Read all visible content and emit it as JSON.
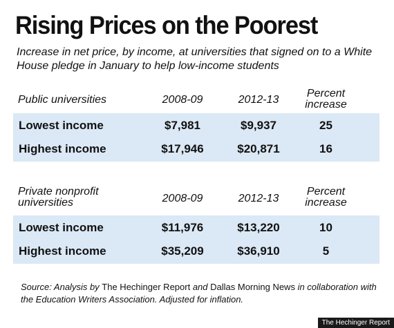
{
  "title": "Rising Prices on the Poorest",
  "subtitle": "Increase in net price, by income, at universities that signed on to a White House pledge in January to help low-income students",
  "public": {
    "heading": "Public universities",
    "col_a": "2008-09",
    "col_b": "2012-13",
    "col_c_1": "Percent",
    "col_c_2": "increase",
    "rows": [
      {
        "label": "Lowest income",
        "a": "$7,981",
        "b": "$9,937",
        "c": "25"
      },
      {
        "label": "Highest income",
        "a": "$17,946",
        "b": "$20,871",
        "c": "16"
      }
    ]
  },
  "private": {
    "heading_1": "Private nonprofit",
    "heading_2": "universities",
    "col_a": "2008-09",
    "col_b": "2012-13",
    "col_c_1": "Percent",
    "col_c_2": "increase",
    "rows": [
      {
        "label": "Lowest income",
        "a": "$11,976",
        "b": "$13,220",
        "c": "10"
      },
      {
        "label": "Highest income",
        "a": "$35,209",
        "b": "$36,910",
        "c": "5"
      }
    ]
  },
  "source": {
    "p1": "Source: Analysis by ",
    "p2": "The Hechinger Report",
    "p3": " and ",
    "p4": "Dallas Morning News",
    "p5": " in collaboration with the Education Writers Association. Adjusted for inflation."
  },
  "credit": "The Hechinger Report",
  "colors": {
    "band": "#dbe8f5",
    "text": "#111111",
    "credit_bg": "#1a1a1a"
  }
}
